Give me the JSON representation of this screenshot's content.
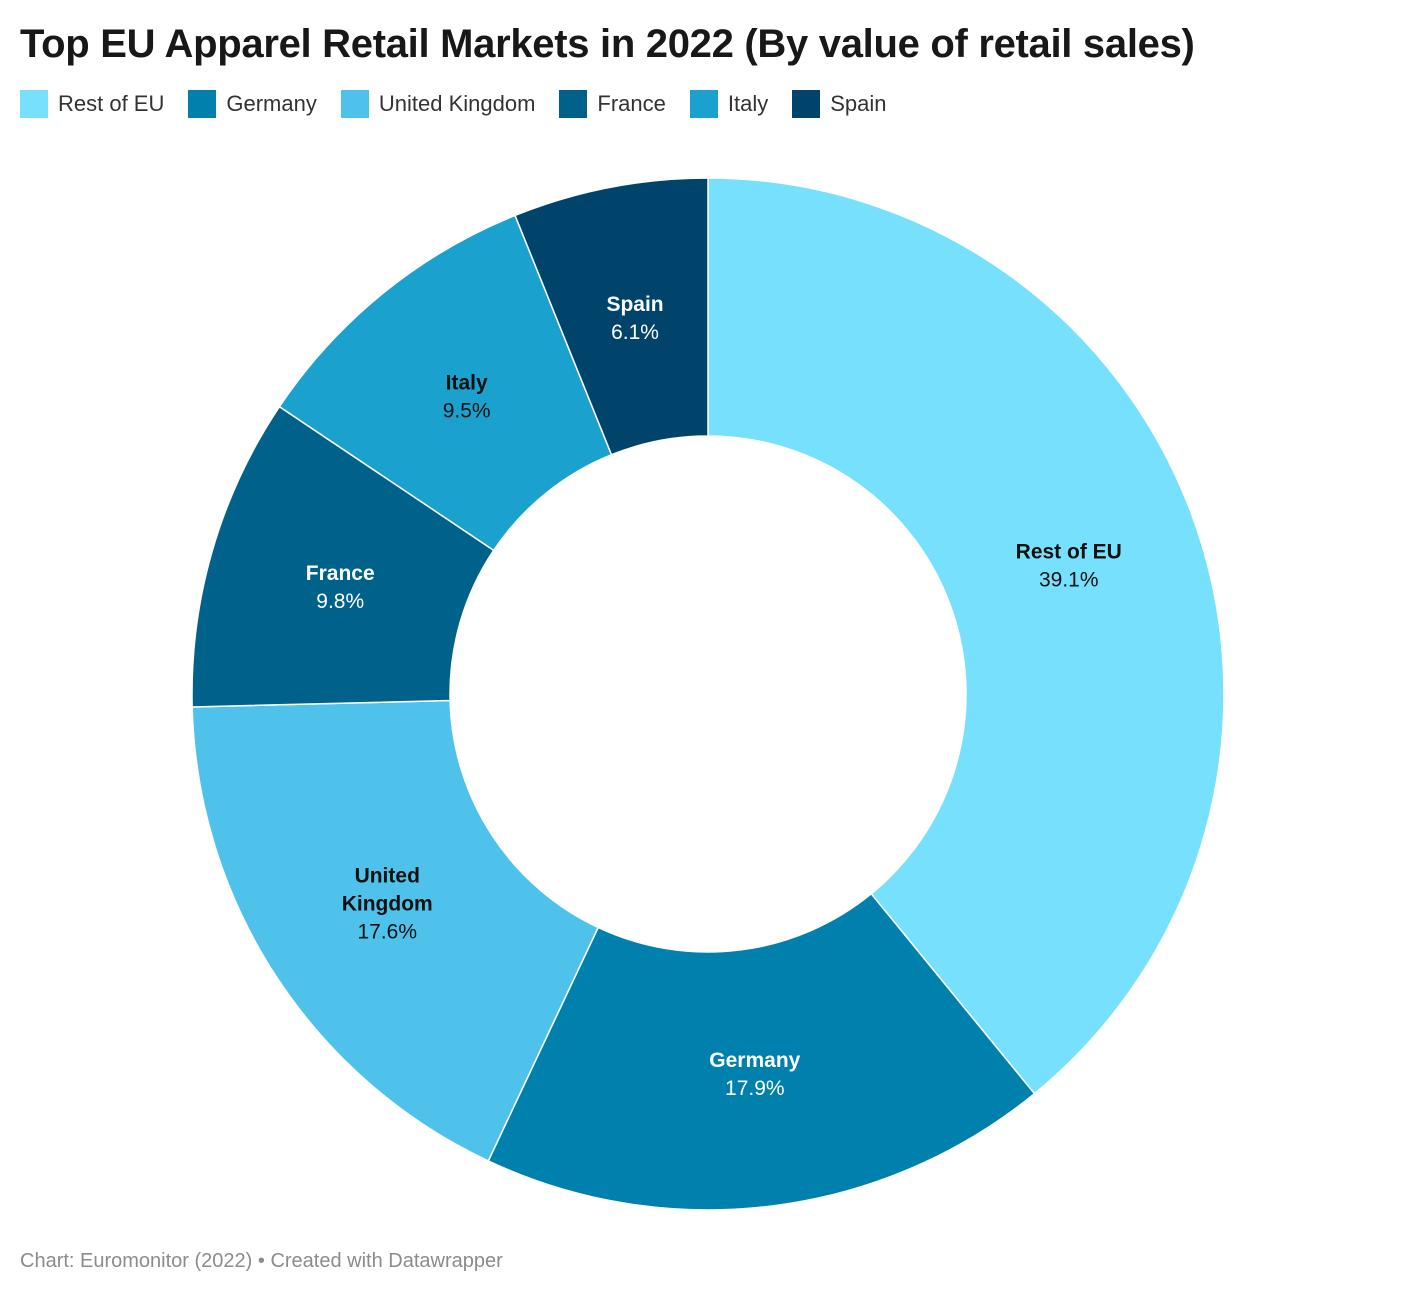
{
  "title": "Top EU Apparel Retail Markets in 2022 (By value of retail sales)",
  "footer": {
    "source": "Chart: Euromonitor (2022)",
    "separator": " • ",
    "credit": "Created with Datawrapper"
  },
  "chart_data": {
    "type": "pie",
    "variant": "donut",
    "title": "Top EU Apparel Retail Markets in 2022 (By value of retail sales)",
    "value_suffix": "%",
    "legend_position": "top-left",
    "slices": [
      {
        "name": "Rest of EU",
        "label_lines": [
          "Rest of EU"
        ],
        "value": 39.1,
        "color": "#77e1fd",
        "label_color": "#111111"
      },
      {
        "name": "Germany",
        "label_lines": [
          "Germany"
        ],
        "value": 17.9,
        "color": "#0080ad",
        "label_color": "#ffffff"
      },
      {
        "name": "United Kingdom",
        "label_lines": [
          "United",
          "Kingdom"
        ],
        "value": 17.6,
        "color": "#4ec2eb",
        "label_color": "#111111"
      },
      {
        "name": "France",
        "label_lines": [
          "France"
        ],
        "value": 9.8,
        "color": "#00628b",
        "label_color": "#ffffff"
      },
      {
        "name": "Italy",
        "label_lines": [
          "Italy"
        ],
        "value": 9.5,
        "color": "#1aa1cd",
        "label_color": "#111111"
      },
      {
        "name": "Spain",
        "label_lines": [
          "Spain"
        ],
        "value": 6.1,
        "color": "#00446c",
        "label_color": "#ffffff"
      }
    ]
  }
}
